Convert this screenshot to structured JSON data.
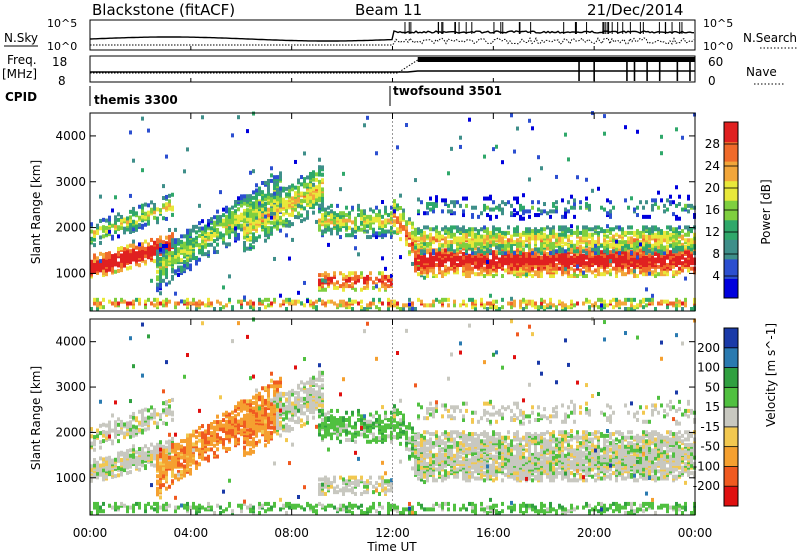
{
  "header": {
    "title": "Blackstone (fitACF)",
    "beam": "Beam 11",
    "date": "21/Dec/2014"
  },
  "top_panels": {
    "nsky_label": "N.Sky",
    "nsky_ticks": [
      "10^5",
      "10^0"
    ],
    "nsearch_label": "N.Search",
    "nsearch_ticks": [
      "10^5",
      "10^0"
    ],
    "freq_label": "Freq.",
    "freq_unit": "[MHz]",
    "freq_ticks": [
      "18",
      "8"
    ],
    "nave_label": "Nave",
    "nave_ticks": [
      "60",
      "0"
    ],
    "cpid_label": "CPID",
    "cpid_modes": [
      {
        "name": "themis 3300",
        "start_hour": 0
      },
      {
        "name": "twofsound 3501",
        "start_hour": 12
      }
    ]
  },
  "colors": {
    "power_scale": [
      "#0000dd",
      "#2c4fd0",
      "#3f8f8a",
      "#2fa86a",
      "#7fcf3f",
      "#e8e83a",
      "#f2a63a",
      "#f06a2a",
      "#e02020"
    ],
    "velocity_scale": [
      "#e01010",
      "#f05a20",
      "#f5a030",
      "#f2c850",
      "#c8c8c0",
      "#50c040",
      "#30a040",
      "#2a7ab0",
      "#1a3aa8"
    ]
  },
  "chart_data": [
    {
      "type": "heatmap",
      "name": "power",
      "ylabel": "Slant Range [km]",
      "y_ticks": [
        1000,
        2000,
        3000,
        4000
      ],
      "ylim": [
        180,
        4500
      ],
      "x_ticks": [
        "00:00",
        "04:00",
        "08:00",
        "12:00",
        "16:00",
        "20:00",
        "00:00"
      ],
      "xlim_hours": [
        0,
        24
      ],
      "colorbar_label": "Power [dB]",
      "colorbar_ticks": [
        4,
        8,
        12,
        16,
        20,
        24,
        28
      ],
      "colorbar_range": [
        0,
        32
      ]
    },
    {
      "type": "heatmap",
      "name": "velocity",
      "ylabel": "Slant Range [km]",
      "y_ticks": [
        1000,
        2000,
        3000,
        4000
      ],
      "ylim": [
        180,
        4500
      ],
      "x_ticks": [
        "00:00",
        "04:00",
        "08:00",
        "12:00",
        "16:00",
        "20:00",
        "00:00"
      ],
      "xlim_hours": [
        0,
        24
      ],
      "xlabel": "Time UT",
      "colorbar_label": "Velocity [m s^-1]",
      "colorbar_ticks": [
        "200",
        "100",
        "50",
        "15",
        "-15",
        "-50",
        "-100",
        "-200"
      ]
    }
  ]
}
